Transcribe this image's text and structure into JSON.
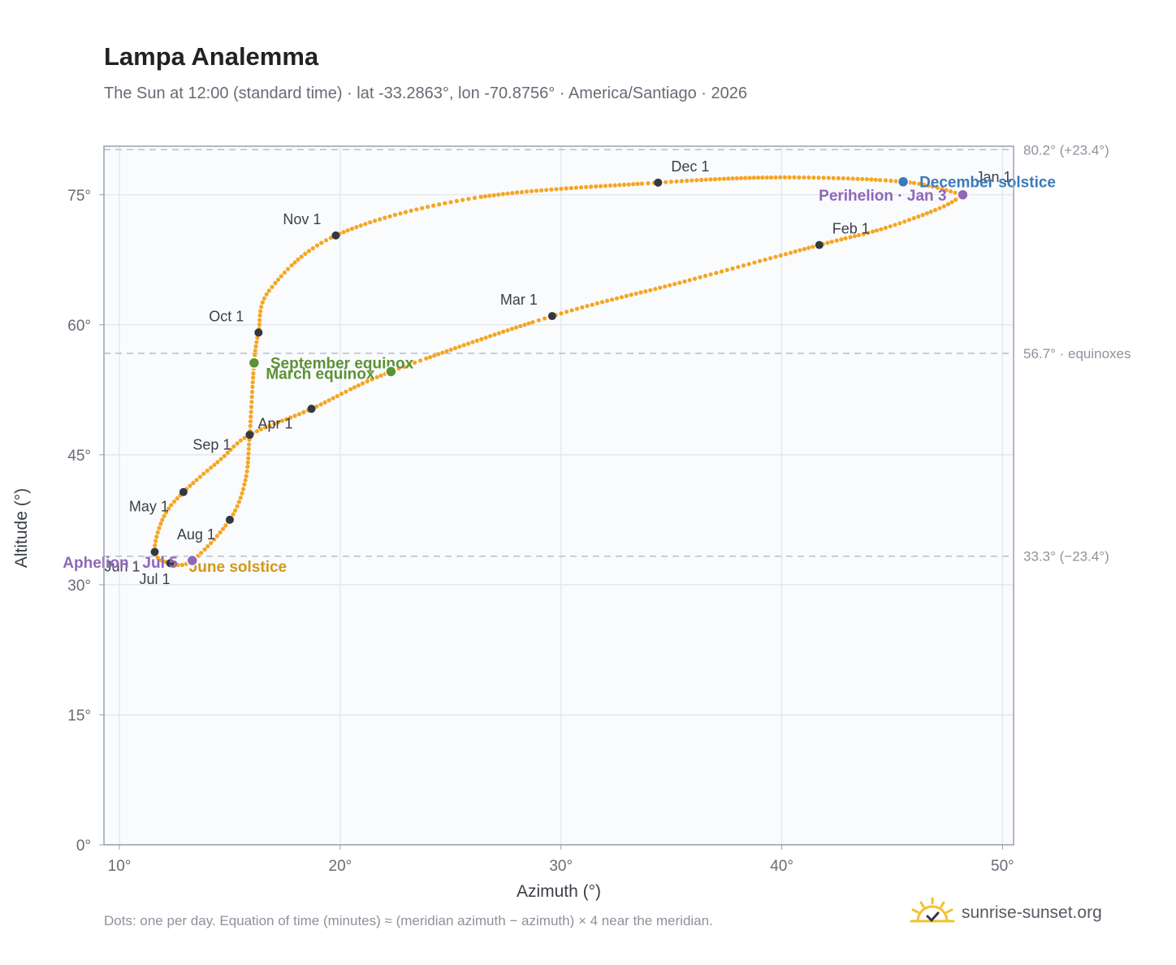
{
  "title": "Lampa Analemma",
  "subtitle": "The Sun at 12:00 (standard time) · lat -33.2863°, lon -70.8756° · America/Santiago · 2026",
  "footnote": "Dots: one per day. Equation of time (minutes) ≈ (meridian azimuth − azimuth) × 4 near the meridian.",
  "brand": {
    "text": "sunrise-sunset.org",
    "logo_icon": "sun-check-icon"
  },
  "colors": {
    "curve": "#f5a623",
    "month_marker": "#333942",
    "equinox": "#5a9234",
    "june_solstice": "#d19818",
    "december_solstice": "#3b7ab8",
    "apsis": "#8e68b8",
    "reference_line": "#b5c0cc",
    "plot_background": "#fafbfd",
    "grid": "#e5e8ed",
    "axis": "#98a2ad"
  },
  "chart_data": {
    "type": "scatter",
    "title": "Lampa Analemma",
    "xlabel": "Azimuth (°)",
    "ylabel": "Altitude (°)",
    "xlim": [
      9.3,
      50.5
    ],
    "ylim": [
      0,
      80.6
    ],
    "grid": true,
    "x_ticks": [
      {
        "value": 10,
        "label": "10°"
      },
      {
        "value": 20,
        "label": "20°"
      },
      {
        "value": 30,
        "label": "30°"
      },
      {
        "value": 40,
        "label": "40°"
      },
      {
        "value": 50,
        "label": "50°"
      }
    ],
    "y_ticks": [
      {
        "value": 0,
        "label": "0°"
      },
      {
        "value": 15,
        "label": "15°"
      },
      {
        "value": 30,
        "label": "30°"
      },
      {
        "value": 45,
        "label": "45°"
      },
      {
        "value": 60,
        "label": "60°"
      },
      {
        "value": 75,
        "label": "75°"
      }
    ],
    "reference_lines": [
      {
        "altitude": 80.2,
        "label": "80.2° (+23.4°)"
      },
      {
        "altitude": 56.7,
        "label": "56.7° · equinoxes"
      },
      {
        "altitude": 33.3,
        "label": "33.3° (−23.4°)"
      }
    ],
    "month_markers": [
      {
        "label": "Jan 1",
        "az": 48.2,
        "alt": 75.0
      },
      {
        "label": "Feb 1",
        "az": 41.7,
        "alt": 69.2
      },
      {
        "label": "Mar 1",
        "az": 29.6,
        "alt": 61.0
      },
      {
        "label": "Apr 1",
        "az": 18.7,
        "alt": 50.3
      },
      {
        "label": "May 1",
        "az": 12.9,
        "alt": 40.7
      },
      {
        "label": "Jun 1",
        "az": 11.6,
        "alt": 33.8
      },
      {
        "label": "Jul 1",
        "az": 12.3,
        "alt": 32.5
      },
      {
        "label": "Aug 1",
        "az": 15.0,
        "alt": 37.5
      },
      {
        "label": "Sep 1",
        "az": 15.9,
        "alt": 47.3
      },
      {
        "label": "Oct 1",
        "az": 16.3,
        "alt": 59.1
      },
      {
        "label": "Nov 1",
        "az": 19.8,
        "alt": 70.3
      },
      {
        "label": "Dec 1",
        "az": 34.4,
        "alt": 76.4
      }
    ],
    "events": [
      {
        "label": "September equinox",
        "az": 16.1,
        "alt": 55.6,
        "color": "#5a9234"
      },
      {
        "label": "March equinox",
        "az": 22.3,
        "alt": 54.6,
        "color": "#5a9234"
      },
      {
        "label": "June solstice",
        "az": 13.3,
        "alt": 32.8,
        "color": "#d19818"
      },
      {
        "label": "December solstice",
        "az": 45.5,
        "alt": 76.5,
        "color": "#3b7ab8"
      },
      {
        "label": "Perihelion · Jan 3",
        "az": 48.2,
        "alt": 75.0,
        "color": "#8e68b8"
      },
      {
        "label": "Aphelion · Jul 5",
        "az": 13.3,
        "alt": 32.8,
        "color": "#8e68b8"
      }
    ],
    "analemma_path": [
      {
        "az": 48.2,
        "alt": 75.0
      },
      {
        "az": 47.2,
        "alt": 73.5
      },
      {
        "az": 44.6,
        "alt": 71.1
      },
      {
        "az": 41.7,
        "alt": 69.2
      },
      {
        "az": 35.6,
        "alt": 65.0
      },
      {
        "az": 29.6,
        "alt": 61.0
      },
      {
        "az": 22.3,
        "alt": 54.6
      },
      {
        "az": 18.7,
        "alt": 50.3
      },
      {
        "az": 15.9,
        "alt": 47.3
      },
      {
        "az": 14.6,
        "alt": 44.5
      },
      {
        "az": 12.9,
        "alt": 40.7
      },
      {
        "az": 12.0,
        "alt": 37.8
      },
      {
        "az": 11.6,
        "alt": 33.8
      },
      {
        "az": 12.3,
        "alt": 32.5
      },
      {
        "az": 13.3,
        "alt": 32.8
      },
      {
        "az": 15.0,
        "alt": 37.5
      },
      {
        "az": 15.7,
        "alt": 42.0
      },
      {
        "az": 15.9,
        "alt": 47.3
      },
      {
        "az": 16.1,
        "alt": 55.6
      },
      {
        "az": 16.3,
        "alt": 59.1
      },
      {
        "az": 16.8,
        "alt": 64.0
      },
      {
        "az": 19.8,
        "alt": 70.3
      },
      {
        "az": 26.0,
        "alt": 74.6
      },
      {
        "az": 34.4,
        "alt": 76.4
      },
      {
        "az": 40.0,
        "alt": 77.0
      },
      {
        "az": 45.5,
        "alt": 76.5
      },
      {
        "az": 48.2,
        "alt": 75.0
      }
    ]
  }
}
